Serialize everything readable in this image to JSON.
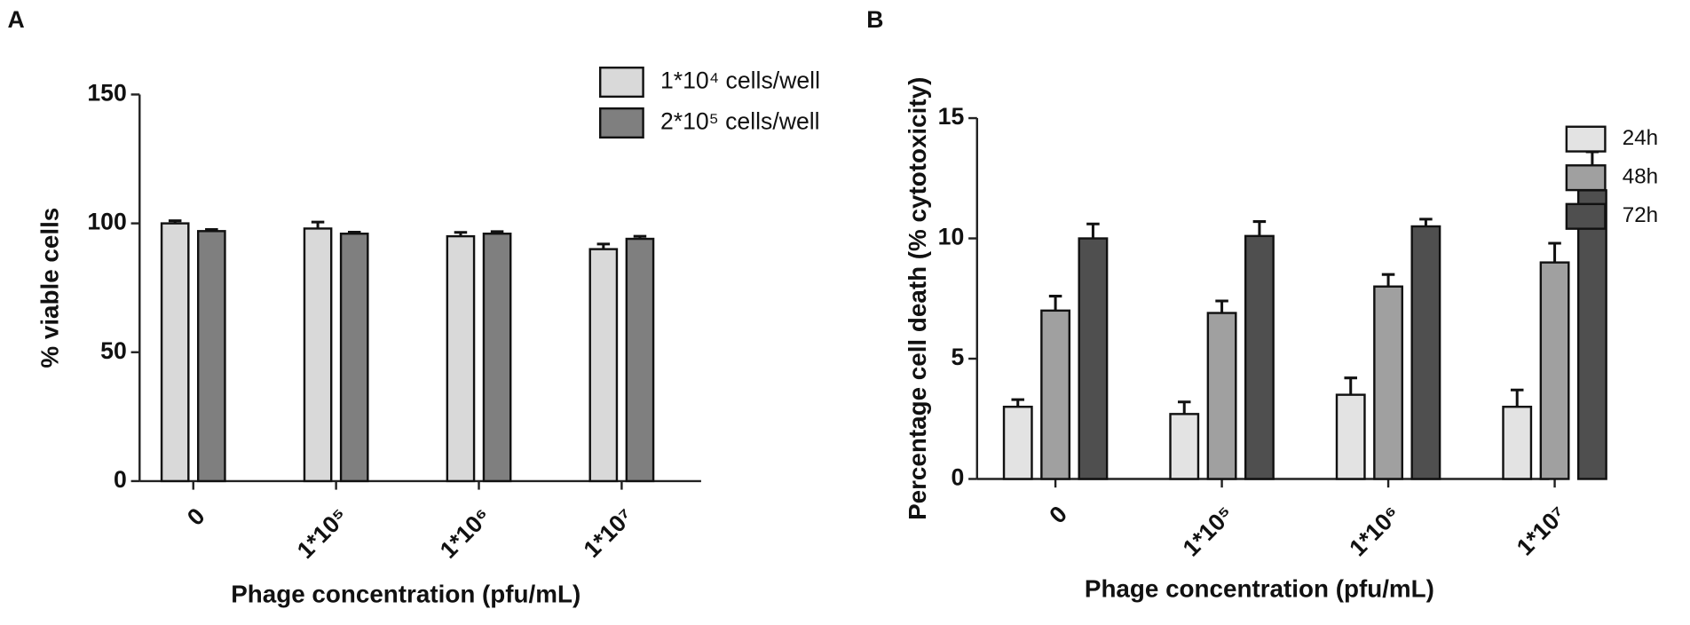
{
  "chart_data": [
    {
      "type": "bar",
      "panel_label": "A",
      "categories": [
        "0",
        "1*10⁵",
        "1*10⁶",
        "1*10⁷"
      ],
      "x_label": "Phage concentration (pfu/mL)",
      "y_label": "% viable cells",
      "ylim": [
        0,
        150
      ],
      "yticks": [
        0,
        50,
        100,
        150
      ],
      "legend_position": "upper right",
      "series": [
        {
          "name": "1*10⁴ cells/well",
          "color": "#d9d9d9",
          "values": [
            100,
            98,
            95,
            90
          ],
          "errors": [
            1,
            2.5,
            1.5,
            2
          ]
        },
        {
          "name": "2*10⁵ cells/well",
          "color": "#7f7f7f",
          "values": [
            97,
            96,
            96,
            94
          ],
          "errors": [
            0.6,
            0.6,
            0.8,
            1
          ]
        }
      ]
    },
    {
      "type": "bar",
      "panel_label": "B",
      "categories": [
        "0",
        "1*10⁵",
        "1*10⁶",
        "1*10⁷"
      ],
      "x_label": "Phage concentration (pfu/mL)",
      "y_label": "Percentage cell death (% cytotoxicity)",
      "ylim": [
        0,
        15
      ],
      "yticks": [
        0,
        5,
        10,
        15
      ],
      "legend_position": "right",
      "series": [
        {
          "name": "24h",
          "color": "#e3e3e3",
          "values": [
            3.0,
            2.7,
            3.5,
            3.0
          ],
          "errors": [
            0.3,
            0.5,
            0.7,
            0.7
          ]
        },
        {
          "name": "48h",
          "color": "#a0a0a0",
          "values": [
            7.0,
            6.9,
            8.0,
            9.0
          ],
          "errors": [
            0.6,
            0.5,
            0.5,
            0.8
          ]
        },
        {
          "name": "72h",
          "color": "#4f4f4f",
          "values": [
            10.0,
            10.1,
            10.5,
            12.0
          ],
          "errors": [
            0.6,
            0.6,
            0.3,
            1.6
          ]
        }
      ]
    }
  ]
}
